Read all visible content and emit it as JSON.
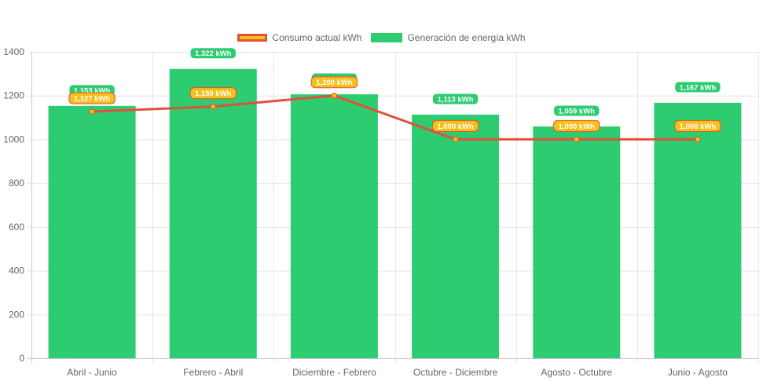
{
  "chart_data": {
    "type": "bar",
    "categories": [
      "Abril - Junio",
      "Febrero - Abril",
      "Diciembre - Febrero",
      "Octubre - Diciembre",
      "Agosto - Octubre",
      "Junio - Agosto"
    ],
    "series": [
      {
        "name": "Generación de energía kWh",
        "type": "bar",
        "color": "#2ecc71",
        "values": [
          1153,
          1322,
          1206,
          1113,
          1059,
          1167
        ],
        "labels": [
          "1,153 kWh",
          "1,322 kWh",
          "1,206 kWh",
          "1,113 kWh",
          "1,059 kWh",
          "1,167 kWh"
        ]
      },
      {
        "name": "Consumo actual kWh",
        "type": "line",
        "color": "#e0513b",
        "fill_color": "#f4c01a",
        "values": [
          1127,
          1150,
          1200,
          1000,
          1000,
          1000
        ],
        "labels": [
          "1,127 kWh",
          "1,150 kWh",
          "1,200 kWh",
          "1,000 kWh",
          "1,000 kWh",
          "1,000 kWh"
        ]
      }
    ],
    "yticks": [
      "0",
      "200",
      "400",
      "600",
      "800",
      "1000",
      "1200",
      "1400"
    ],
    "ylim": [
      0,
      1400
    ],
    "grid": true,
    "legend_position": "top"
  }
}
